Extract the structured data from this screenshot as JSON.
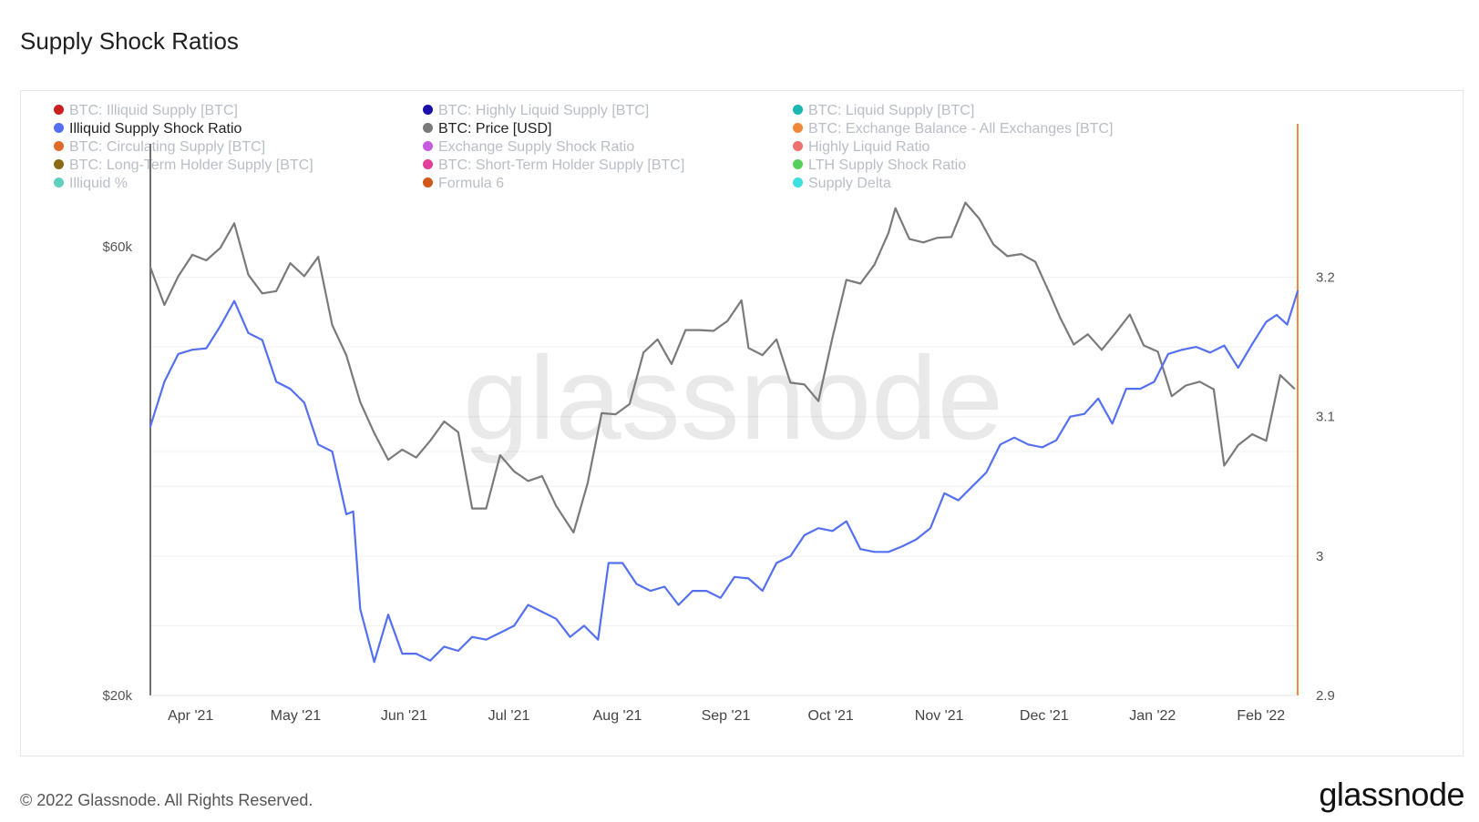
{
  "page": {
    "title": "Supply Shock Ratios"
  },
  "footer": {
    "copyright": "© 2022 Glassnode. All Rights Reserved.",
    "logo": "glassnode"
  },
  "watermark": "glassnode",
  "legend": [
    {
      "label": "BTC: Illiquid Supply [BTC]",
      "color": "#cc1f1f",
      "active": false
    },
    {
      "label": "BTC: Highly Liquid Supply [BTC]",
      "color": "#1a0fa8",
      "active": false
    },
    {
      "label": "BTC: Liquid Supply [BTC]",
      "color": "#1ab8b0",
      "active": false
    },
    {
      "label": "Illiquid Supply Shock Ratio",
      "color": "#5470f0",
      "active": true
    },
    {
      "label": "BTC: Price [USD]",
      "color": "#7a7a7a",
      "active": true
    },
    {
      "label": "BTC: Exchange Balance - All Exchanges [BTC]",
      "color": "#f0883a",
      "active": false
    },
    {
      "label": "BTC: Circulating Supply [BTC]",
      "color": "#e06a28",
      "active": false
    },
    {
      "label": "Exchange Supply Shock Ratio",
      "color": "#c45be0",
      "active": false
    },
    {
      "label": "Highly Liquid Ratio",
      "color": "#f07070",
      "active": false
    },
    {
      "label": "BTC: Long-Term Holder Supply [BTC]",
      "color": "#8a6a12",
      "active": false
    },
    {
      "label": "BTC: Short-Term Holder Supply [BTC]",
      "color": "#e0409a",
      "active": false
    },
    {
      "label": "LTH Supply Shock Ratio",
      "color": "#55d05a",
      "active": false
    },
    {
      "label": "Illiquid %",
      "color": "#5fd0c0",
      "active": false
    },
    {
      "label": "Formula 6",
      "color": "#d0581a",
      "active": false
    },
    {
      "label": "Supply Delta",
      "color": "#3ee0e0",
      "active": false
    }
  ],
  "chart_data": {
    "type": "line",
    "x_ticks": [
      "Apr '21",
      "May '21",
      "Jun '21",
      "Jul '21",
      "Aug '21",
      "Sep '21",
      "Oct '21",
      "Nov '21",
      "Dec '21",
      "Jan '22",
      "Feb '22"
    ],
    "y_left_ticks": [
      "$60k",
      "$20k"
    ],
    "y_left_log": true,
    "y_left_range": [
      20000,
      66000
    ],
    "y_right_ticks": [
      "3.2",
      "3.1",
      "3",
      "2.9"
    ],
    "y_right_range": [
      2.9,
      3.25
    ],
    "grid": true,
    "x_start": "2021-03-21",
    "x_end": "2022-02-12",
    "series": [
      {
        "name": "BTC: Price [USD]",
        "axis": "left",
        "color": "#7a7a7a",
        "points": [
          [
            "2021-03-21",
            57000
          ],
          [
            "2021-03-25",
            52000
          ],
          [
            "2021-03-29",
            55800
          ],
          [
            "2021-04-02",
            58800
          ],
          [
            "2021-04-06",
            58000
          ],
          [
            "2021-04-10",
            59800
          ],
          [
            "2021-04-14",
            63500
          ],
          [
            "2021-04-18",
            56000
          ],
          [
            "2021-04-22",
            53500
          ],
          [
            "2021-04-26",
            53800
          ],
          [
            "2021-04-30",
            57600
          ],
          [
            "2021-05-04",
            55800
          ],
          [
            "2021-05-08",
            58500
          ],
          [
            "2021-05-12",
            49500
          ],
          [
            "2021-05-16",
            46000
          ],
          [
            "2021-05-20",
            41000
          ],
          [
            "2021-05-24",
            38000
          ],
          [
            "2021-05-28",
            35600
          ],
          [
            "2021-06-01",
            36500
          ],
          [
            "2021-06-05",
            35800
          ],
          [
            "2021-06-09",
            37300
          ],
          [
            "2021-06-13",
            39100
          ],
          [
            "2021-06-17",
            38100
          ],
          [
            "2021-06-21",
            31600
          ],
          [
            "2021-06-25",
            31600
          ],
          [
            "2021-06-29",
            36000
          ],
          [
            "2021-07-03",
            34600
          ],
          [
            "2021-07-07",
            33800
          ],
          [
            "2021-07-11",
            34200
          ],
          [
            "2021-07-15",
            31800
          ],
          [
            "2021-07-20",
            29800
          ],
          [
            "2021-07-24",
            33600
          ],
          [
            "2021-07-28",
            39900
          ],
          [
            "2021-08-01",
            39800
          ],
          [
            "2021-08-05",
            40800
          ],
          [
            "2021-08-09",
            46300
          ],
          [
            "2021-08-13",
            47800
          ],
          [
            "2021-08-17",
            45000
          ],
          [
            "2021-08-21",
            48900
          ],
          [
            "2021-08-25",
            48900
          ],
          [
            "2021-08-29",
            48800
          ],
          [
            "2021-09-02",
            50000
          ],
          [
            "2021-09-06",
            52600
          ],
          [
            "2021-09-08",
            46800
          ],
          [
            "2021-09-12",
            46000
          ],
          [
            "2021-09-16",
            47800
          ],
          [
            "2021-09-20",
            43000
          ],
          [
            "2021-09-24",
            42800
          ],
          [
            "2021-09-28",
            41100
          ],
          [
            "2021-10-02",
            48000
          ],
          [
            "2021-10-06",
            55300
          ],
          [
            "2021-10-10",
            54800
          ],
          [
            "2021-10-14",
            57400
          ],
          [
            "2021-10-18",
            62000
          ],
          [
            "2021-10-20",
            65900
          ],
          [
            "2021-10-24",
            61100
          ],
          [
            "2021-10-28",
            60600
          ],
          [
            "2021-11-01",
            61300
          ],
          [
            "2021-11-05",
            61400
          ],
          [
            "2021-11-09",
            66800
          ],
          [
            "2021-11-13",
            64200
          ],
          [
            "2021-11-17",
            60300
          ],
          [
            "2021-11-21",
            58600
          ],
          [
            "2021-11-25",
            58900
          ],
          [
            "2021-11-29",
            57800
          ],
          [
            "2021-12-03",
            53600
          ],
          [
            "2021-12-06",
            50500
          ],
          [
            "2021-12-10",
            47200
          ],
          [
            "2021-12-14",
            48400
          ],
          [
            "2021-12-18",
            46600
          ],
          [
            "2021-12-22",
            48600
          ],
          [
            "2021-12-26",
            50800
          ],
          [
            "2021-12-30",
            47100
          ],
          [
            "2022-01-03",
            46400
          ],
          [
            "2022-01-07",
            41600
          ],
          [
            "2022-01-11",
            42700
          ],
          [
            "2022-01-15",
            43100
          ],
          [
            "2022-01-19",
            42300
          ],
          [
            "2022-01-22",
            35100
          ],
          [
            "2022-01-26",
            36900
          ],
          [
            "2022-01-30",
            37900
          ],
          [
            "2022-02-03",
            37300
          ],
          [
            "2022-02-07",
            43800
          ],
          [
            "2022-02-11",
            42400
          ]
        ]
      },
      {
        "name": "Illiquid Supply Shock Ratio",
        "axis": "right",
        "color": "#5470f0",
        "points": [
          [
            "2021-03-21",
            3.093
          ],
          [
            "2021-03-25",
            3.125
          ],
          [
            "2021-03-29",
            3.145
          ],
          [
            "2021-04-02",
            3.148
          ],
          [
            "2021-04-06",
            3.149
          ],
          [
            "2021-04-10",
            3.165
          ],
          [
            "2021-04-14",
            3.183
          ],
          [
            "2021-04-18",
            3.16
          ],
          [
            "2021-04-22",
            3.155
          ],
          [
            "2021-04-26",
            3.125
          ],
          [
            "2021-04-30",
            3.12
          ],
          [
            "2021-05-04",
            3.11
          ],
          [
            "2021-05-08",
            3.08
          ],
          [
            "2021-05-12",
            3.075
          ],
          [
            "2021-05-16",
            3.03
          ],
          [
            "2021-05-18",
            3.032
          ],
          [
            "2021-05-20",
            2.962
          ],
          [
            "2021-05-24",
            2.924
          ],
          [
            "2021-05-28",
            2.958
          ],
          [
            "2021-06-01",
            2.93
          ],
          [
            "2021-06-05",
            2.93
          ],
          [
            "2021-06-09",
            2.925
          ],
          [
            "2021-06-13",
            2.935
          ],
          [
            "2021-06-17",
            2.932
          ],
          [
            "2021-06-21",
            2.942
          ],
          [
            "2021-06-25",
            2.94
          ],
          [
            "2021-06-29",
            2.945
          ],
          [
            "2021-07-03",
            2.95
          ],
          [
            "2021-07-07",
            2.965
          ],
          [
            "2021-07-11",
            2.96
          ],
          [
            "2021-07-15",
            2.955
          ],
          [
            "2021-07-19",
            2.942
          ],
          [
            "2021-07-23",
            2.95
          ],
          [
            "2021-07-27",
            2.94
          ],
          [
            "2021-07-30",
            2.995
          ],
          [
            "2021-08-03",
            2.995
          ],
          [
            "2021-08-07",
            2.98
          ],
          [
            "2021-08-11",
            2.975
          ],
          [
            "2021-08-15",
            2.978
          ],
          [
            "2021-08-19",
            2.965
          ],
          [
            "2021-08-23",
            2.975
          ],
          [
            "2021-08-27",
            2.975
          ],
          [
            "2021-08-31",
            2.97
          ],
          [
            "2021-09-04",
            2.985
          ],
          [
            "2021-09-08",
            2.984
          ],
          [
            "2021-09-12",
            2.975
          ],
          [
            "2021-09-16",
            2.995
          ],
          [
            "2021-09-20",
            3.0
          ],
          [
            "2021-09-24",
            3.015
          ],
          [
            "2021-09-28",
            3.02
          ],
          [
            "2021-10-02",
            3.018
          ],
          [
            "2021-10-06",
            3.025
          ],
          [
            "2021-10-10",
            3.005
          ],
          [
            "2021-10-14",
            3.003
          ],
          [
            "2021-10-18",
            3.003
          ],
          [
            "2021-10-22",
            3.007
          ],
          [
            "2021-10-26",
            3.012
          ],
          [
            "2021-10-30",
            3.02
          ],
          [
            "2021-11-03",
            3.045
          ],
          [
            "2021-11-07",
            3.04
          ],
          [
            "2021-11-11",
            3.05
          ],
          [
            "2021-11-15",
            3.06
          ],
          [
            "2021-11-19",
            3.08
          ],
          [
            "2021-11-23",
            3.085
          ],
          [
            "2021-11-27",
            3.08
          ],
          [
            "2021-12-01",
            3.078
          ],
          [
            "2021-12-05",
            3.083
          ],
          [
            "2021-12-09",
            3.1
          ],
          [
            "2021-12-13",
            3.102
          ],
          [
            "2021-12-17",
            3.113
          ],
          [
            "2021-12-21",
            3.095
          ],
          [
            "2021-12-25",
            3.12
          ],
          [
            "2021-12-29",
            3.12
          ],
          [
            "2022-01-02",
            3.125
          ],
          [
            "2022-01-06",
            3.145
          ],
          [
            "2022-01-10",
            3.148
          ],
          [
            "2022-01-14",
            3.15
          ],
          [
            "2022-01-18",
            3.146
          ],
          [
            "2022-01-22",
            3.151
          ],
          [
            "2022-01-26",
            3.135
          ],
          [
            "2022-01-30",
            3.152
          ],
          [
            "2022-02-03",
            3.168
          ],
          [
            "2022-02-06",
            3.173
          ],
          [
            "2022-02-09",
            3.166
          ],
          [
            "2022-02-12",
            3.19
          ]
        ]
      }
    ]
  }
}
